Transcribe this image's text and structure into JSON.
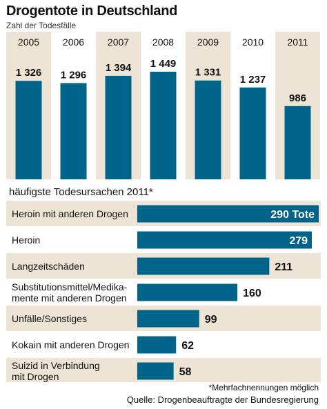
{
  "header": {
    "title": "Drogentote in Deutschland",
    "subtitle": "Zahl der Todesfälle"
  },
  "colors": {
    "bar": "#00638a",
    "band_shaded": "#ede4d6",
    "text": "#111111",
    "label_inside": "#ffffff"
  },
  "chart_data": [
    {
      "type": "bar",
      "title": "Drogentote in Deutschland",
      "subtitle": "Zahl der Todesfälle",
      "categories": [
        "2005",
        "2006",
        "2007",
        "2008",
        "2009",
        "2010",
        "2011"
      ],
      "values": [
        1326,
        1296,
        1394,
        1449,
        1331,
        1237,
        986
      ],
      "value_labels": [
        "1 326",
        "1 296",
        "1 394",
        "1 449",
        "1 331",
        "1 237",
        "986"
      ],
      "ylim": [
        0,
        1449
      ],
      "grid": false,
      "shaded_categories": [
        "2005",
        "2007",
        "2009",
        "2011"
      ]
    },
    {
      "type": "bar",
      "orientation": "horizontal",
      "title": "häufigste Todesursachen 2011*",
      "categories": [
        [
          "Heroin mit anderen Drogen"
        ],
        [
          "Heroin"
        ],
        [
          "Langzeitschäden"
        ],
        [
          "Substitutionsmittel/Medika-",
          "mente mit anderen Drogen"
        ],
        [
          "Unfälle/Sonstiges"
        ],
        [
          "Kokain mit anderen Drogen"
        ],
        [
          "Suizid in Verbindung",
          "mit Drogen"
        ]
      ],
      "values": [
        290,
        279,
        211,
        160,
        99,
        62,
        58
      ],
      "value_labels": [
        "290 Tote",
        "279",
        "211",
        "160",
        "99",
        "62",
        "58"
      ],
      "grid": false
    }
  ],
  "footer": {
    "footnote": "*Mehrfachnennungen möglich",
    "source": "Quelle: Drogenbeauftragte der Bundesregierung"
  }
}
